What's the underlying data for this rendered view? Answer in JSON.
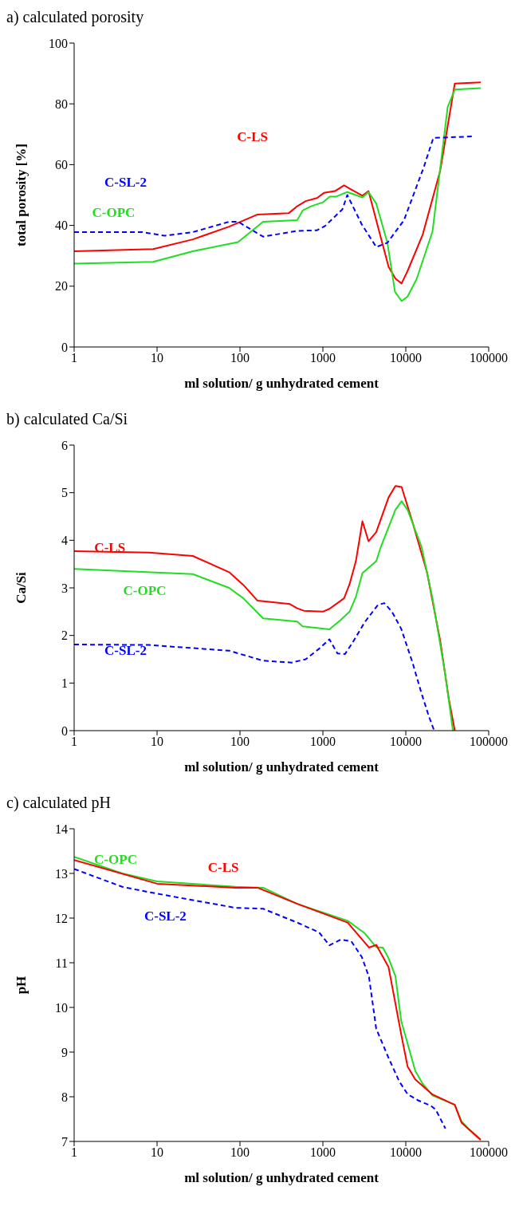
{
  "chart_data": [
    {
      "type": "line",
      "title": "a) calculated porosity",
      "xlabel": "ml solution/ g unhydrated cement",
      "ylabel": "total porosity [%]",
      "log": "x",
      "xlim": [
        1,
        100000
      ],
      "xticks": [
        1,
        10,
        100,
        1000,
        10000,
        100000
      ],
      "ylim": [
        0,
        100
      ],
      "yticks": [
        0,
        20,
        40,
        60,
        80,
        100
      ],
      "series": [
        {
          "name": "C-LS",
          "color": "#ff0000",
          "line_style": "solid",
          "x": [
            1,
            9,
            27,
            74,
            163,
            386,
            490,
            620,
            850,
            1030,
            1400,
            1800,
            2200,
            3000,
            3550,
            6200,
            7500,
            8900,
            10500,
            16000,
            26000,
            39000,
            80000
          ],
          "values": [
            31.5,
            32.2,
            35.4,
            39.6,
            43.6,
            44,
            46.3,
            48,
            49,
            50.7,
            51.3,
            53.2,
            51.8,
            49.8,
            51.3,
            26.4,
            22.5,
            20.9,
            25,
            37,
            58,
            86.7,
            87.1
          ]
        },
        {
          "name": "C-OPC",
          "color": "#22dd22",
          "line_style": "solid",
          "x": [
            1,
            9,
            27,
            95,
            190,
            490,
            570,
            720,
            1000,
            1210,
            1450,
            1970,
            3000,
            3550,
            4400,
            6000,
            7400,
            8900,
            10500,
            13500,
            21000,
            32000,
            39000,
            80000
          ],
          "values": [
            27.4,
            28,
            31.5,
            34.5,
            41.2,
            41.7,
            44.9,
            46.3,
            47.6,
            49.5,
            49.5,
            51,
            49.2,
            51,
            47.2,
            34.3,
            18.2,
            15.1,
            16.6,
            22.3,
            38,
            79,
            84.7,
            85.2
          ]
        },
        {
          "name": "C-SL-2",
          "color": "#0000ff",
          "line_style": "dashed",
          "x": [
            1,
            6.6,
            12.4,
            27,
            74,
            95,
            190,
            490,
            850,
            1060,
            1720,
            1970,
            2950,
            4400,
            6000,
            9500,
            16500,
            21500,
            65000
          ],
          "values": [
            37.8,
            37.8,
            36.6,
            37.8,
            41.2,
            41.2,
            36.3,
            38.2,
            38.4,
            39.8,
            45.3,
            50,
            40.3,
            32.9,
            34.3,
            41.7,
            59.2,
            68.8,
            69.3
          ]
        }
      ]
    },
    {
      "type": "line",
      "title": "b) calculated Ca/Si",
      "xlabel": "ml solution/ g unhydrated cement",
      "ylabel": "Ca/Si",
      "log": "x",
      "xlim": [
        1,
        100000
      ],
      "xticks": [
        1,
        10,
        100,
        1000,
        10000,
        100000
      ],
      "ylim": [
        0,
        6
      ],
      "yticks": [
        0,
        1,
        2,
        3,
        4,
        5,
        6
      ],
      "series": [
        {
          "name": "C-LS",
          "color": "#ff0000",
          "line_style": "solid",
          "x": [
            1,
            8,
            27,
            74,
            110,
            163,
            400,
            490,
            590,
            1000,
            1200,
            1800,
            2100,
            2500,
            3000,
            3550,
            4400,
            6200,
            7500,
            8900,
            12000,
            18000,
            26000,
            33000,
            39000
          ],
          "values": [
            3.77,
            3.74,
            3.67,
            3.33,
            3.06,
            2.73,
            2.66,
            2.57,
            2.52,
            2.5,
            2.56,
            2.78,
            3.08,
            3.56,
            4.4,
            3.98,
            4.17,
            4.9,
            5.14,
            5.12,
            4.39,
            3.33,
            1.89,
            0.67,
            0
          ]
        },
        {
          "name": "C-OPC",
          "color": "#22dd22",
          "line_style": "solid",
          "x": [
            1,
            27,
            74,
            110,
            190,
            490,
            570,
            1200,
            1650,
            2100,
            2500,
            3000,
            4400,
            5000,
            7500,
            8900,
            10500,
            15500,
            21000,
            30000,
            37000
          ],
          "values": [
            3.4,
            3.29,
            3,
            2.78,
            2.36,
            2.29,
            2.19,
            2.13,
            2.33,
            2.5,
            2.81,
            3.31,
            3.56,
            3.86,
            4.64,
            4.82,
            4.64,
            3.86,
            2.78,
            1.17,
            0
          ]
        },
        {
          "name": "C-SL-2",
          "color": "#0000ff",
          "line_style": "dashed",
          "x": [
            1,
            8,
            74,
            190,
            420,
            620,
            900,
            1200,
            1500,
            1850,
            2300,
            3200,
            4600,
            5500,
            6800,
            8800,
            12000,
            15500,
            19000,
            22000
          ],
          "values": [
            1.81,
            1.8,
            1.68,
            1.47,
            1.43,
            1.5,
            1.72,
            1.92,
            1.62,
            1.61,
            1.86,
            2.28,
            2.64,
            2.68,
            2.5,
            2.14,
            1.44,
            0.78,
            0.3,
            0
          ]
        }
      ]
    },
    {
      "type": "line",
      "title": "c) calculated pH",
      "xlabel": "ml solution/ g unhydrated cement",
      "ylabel": "pH",
      "log": "x",
      "xlim": [
        1,
        100000
      ],
      "xticks": [
        1,
        10,
        100,
        1000,
        10000,
        100000
      ],
      "ylim": [
        7,
        14
      ],
      "yticks": [
        7,
        8,
        9,
        10,
        11,
        12,
        13,
        14
      ],
      "series": [
        {
          "name": "C-OPC",
          "color": "#22dd22",
          "line_style": "solid",
          "x": [
            1,
            3.8,
            10,
            88,
            190,
            490,
            1990,
            3200,
            4400,
            5300,
            6200,
            7500,
            8800,
            13000,
            16000,
            21000,
            39000,
            47000,
            58000,
            80000
          ],
          "values": [
            13.37,
            13,
            12.82,
            12.7,
            12.68,
            12.32,
            11.94,
            11.66,
            11.35,
            11.34,
            11.1,
            10.7,
            9.7,
            8.58,
            8.29,
            8.03,
            7.82,
            7.45,
            7.27,
            7.05
          ]
        },
        {
          "name": "C-LS",
          "color": "#ff0000",
          "line_style": "solid",
          "x": [
            1,
            10,
            88,
            163,
            490,
            1990,
            3600,
            4400,
            6200,
            8800,
            10500,
            13000,
            21000,
            39000,
            47000,
            80000
          ],
          "values": [
            13.3,
            12.77,
            12.68,
            12.68,
            12.32,
            11.9,
            11.34,
            11.4,
            10.9,
            9.4,
            8.68,
            8.39,
            8.05,
            7.82,
            7.42,
            7.03
          ]
        },
        {
          "name": "C-SL-2",
          "color": "#0000ff",
          "line_style": "dashed",
          "x": [
            1,
            3.8,
            8,
            88,
            190,
            490,
            900,
            1200,
            1650,
            2200,
            2950,
            3600,
            4400,
            6200,
            8300,
            10500,
            14000,
            20000,
            23000,
            30000
          ],
          "values": [
            13.1,
            12.7,
            12.58,
            12.23,
            12.21,
            11.9,
            11.68,
            11.39,
            11.52,
            11.48,
            11.13,
            10.68,
            9.52,
            8.87,
            8.35,
            8.06,
            7.92,
            7.8,
            7.71,
            7.29
          ]
        }
      ]
    }
  ]
}
